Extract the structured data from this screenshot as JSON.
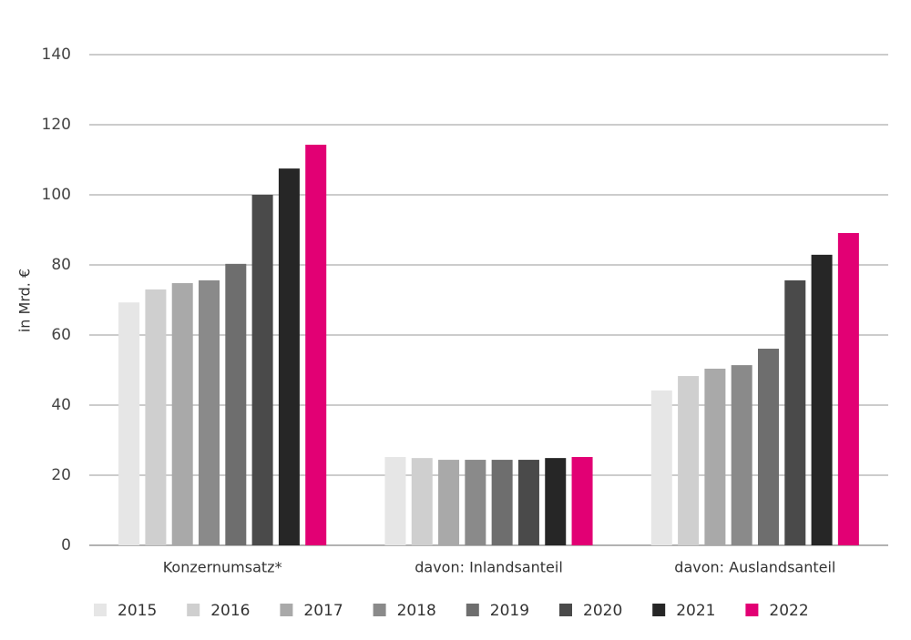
{
  "chart_data": {
    "type": "bar",
    "y_label": "in Mrd. €",
    "categories": [
      "Konzernumsatz*",
      "davon: Inlandsanteil",
      "davon: Auslandsanteil"
    ],
    "series": [
      {
        "name": "2015",
        "color": "#e6e6e6",
        "values": [
          69.3,
          25.2,
          44.2
        ]
      },
      {
        "name": "2016",
        "color": "#cfcfcf",
        "values": [
          73.0,
          24.9,
          48.3
        ]
      },
      {
        "name": "2017",
        "color": "#a9a9a9",
        "values": [
          74.8,
          24.4,
          50.4
        ]
      },
      {
        "name": "2018",
        "color": "#8a8a8a",
        "values": [
          75.6,
          24.4,
          51.4
        ]
      },
      {
        "name": "2019",
        "color": "#6e6e6e",
        "values": [
          80.3,
          24.4,
          56.1
        ]
      },
      {
        "name": "2020",
        "color": "#4a4a4a",
        "values": [
          100.0,
          24.4,
          75.6
        ]
      },
      {
        "name": "2021",
        "color": "#262626",
        "values": [
          107.5,
          24.9,
          82.9
        ]
      },
      {
        "name": "2022",
        "color": "#e20074",
        "values": [
          114.3,
          25.2,
          89.1
        ]
      }
    ],
    "ylim": [
      0,
      140
    ],
    "yticks": [
      0,
      20,
      40,
      60,
      80,
      100,
      120,
      140
    ],
    "grid": true,
    "legend": "bottom"
  }
}
